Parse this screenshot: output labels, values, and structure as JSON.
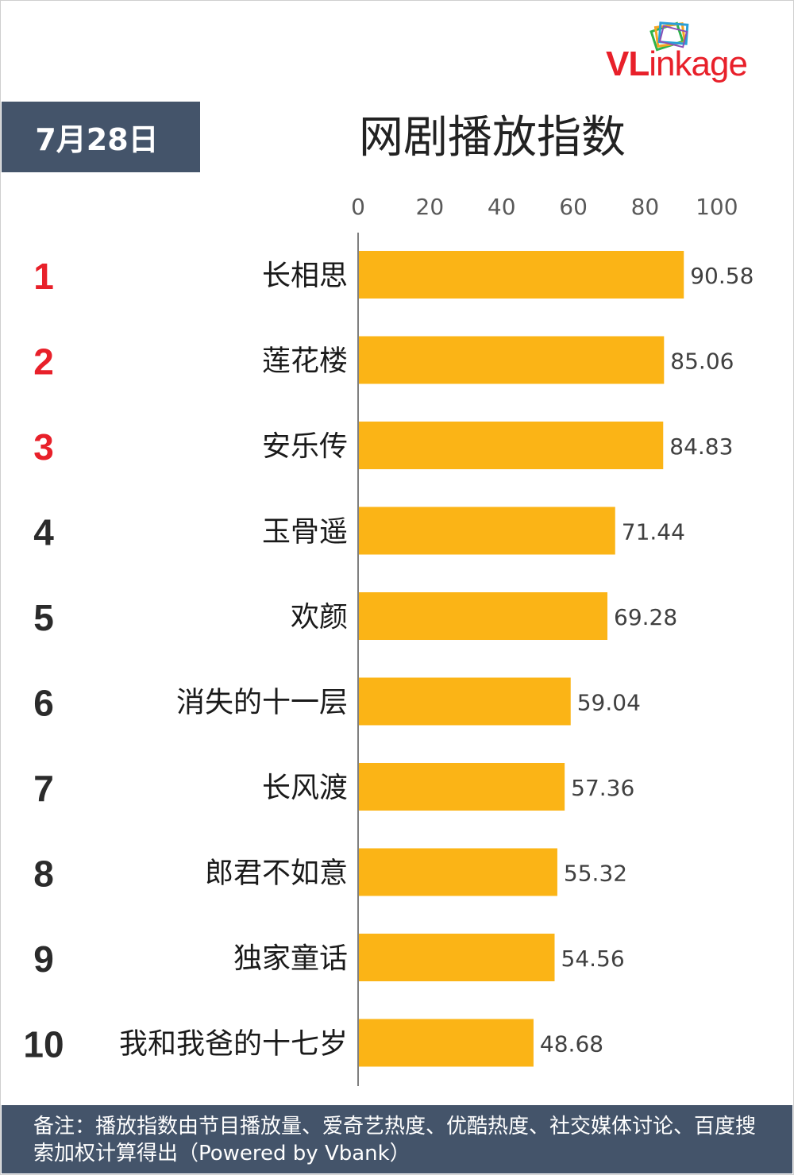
{
  "header": {
    "date": "7月28日",
    "title": "网剧播放指数",
    "logo": "VLinkage"
  },
  "chart_data": {
    "type": "bar",
    "orientation": "horizontal",
    "title": "网剧播放指数",
    "xlim": [
      0,
      100
    ],
    "xticks": [
      "0",
      "20",
      "40",
      "60",
      "80",
      "100"
    ],
    "ranks": [
      "1",
      "2",
      "3",
      "4",
      "5",
      "6",
      "7",
      "8",
      "9",
      "10"
    ],
    "categories": [
      "长相思",
      "莲花楼",
      "安乐传",
      "玉骨遥",
      "欢颜",
      "消失的十一层",
      "长风渡",
      "郎君不如意",
      "独家童话",
      "我和我爸的十七岁"
    ],
    "values": [
      90.58,
      85.06,
      84.83,
      71.44,
      69.28,
      59.04,
      57.36,
      55.32,
      54.56,
      48.68
    ],
    "value_labels": [
      "90.58",
      "85.06",
      "84.83",
      "71.44",
      "69.28",
      "59.04",
      "57.36",
      "55.32",
      "54.56",
      "48.68"
    ],
    "grid": false,
    "colors": {
      "bar": "#fbb416",
      "top_rank": "#e8202a",
      "rank": "#2b2b2b",
      "axis": "#7f7f7f",
      "tick": "#595959"
    }
  },
  "footer": {
    "note": "备注：播放指数由节目播放量、爱奇艺热度、优酷热度、社交媒体讨论、百度搜索加权计算得出（Powered by Vbank）"
  }
}
